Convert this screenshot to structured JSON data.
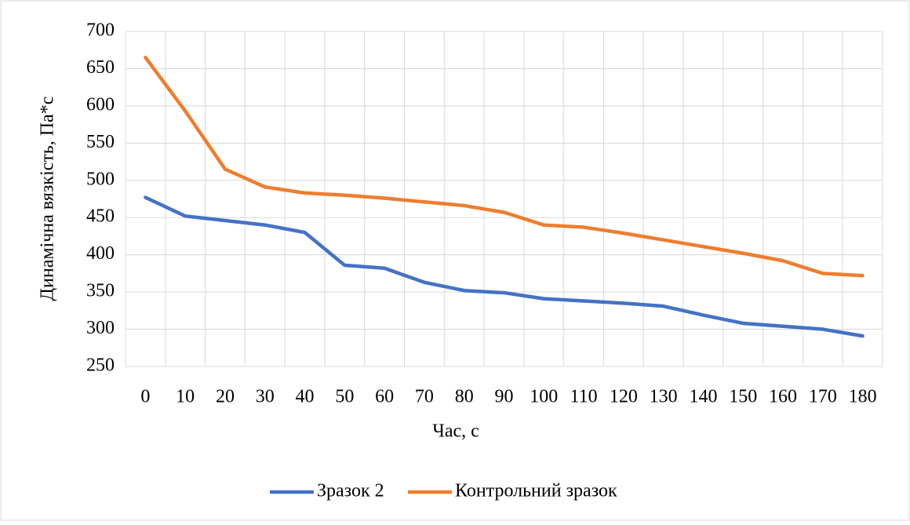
{
  "chart_data": {
    "type": "line",
    "x_label": "Час, с",
    "y_label": "Динамічна вязкість, Па*с",
    "categories": [
      "0",
      "10",
      "20",
      "30",
      "40",
      "50",
      "60",
      "70",
      "80",
      "90",
      "100",
      "110",
      "120",
      "130",
      "140",
      "150",
      "160",
      "170",
      "180"
    ],
    "series": [
      {
        "name": "Зразок 2",
        "color": "#4472c4",
        "values": [
          477,
          452,
          446,
          440,
          430,
          386,
          382,
          363,
          352,
          349,
          341,
          338,
          335,
          331,
          319,
          308,
          304,
          300,
          291
        ]
      },
      {
        "name": "Контрольний зразок",
        "color": "#ed7d31",
        "values": [
          665,
          593,
          515,
          491,
          483,
          480,
          476,
          471,
          466,
          457,
          440,
          437,
          429,
          420,
          411,
          402,
          392,
          375,
          372
        ]
      }
    ],
    "ylim": [
      250,
      700
    ],
    "yticks": [
      250,
      300,
      350,
      400,
      450,
      500,
      550,
      600,
      650,
      700
    ],
    "grid": true,
    "legend": "bottom"
  }
}
